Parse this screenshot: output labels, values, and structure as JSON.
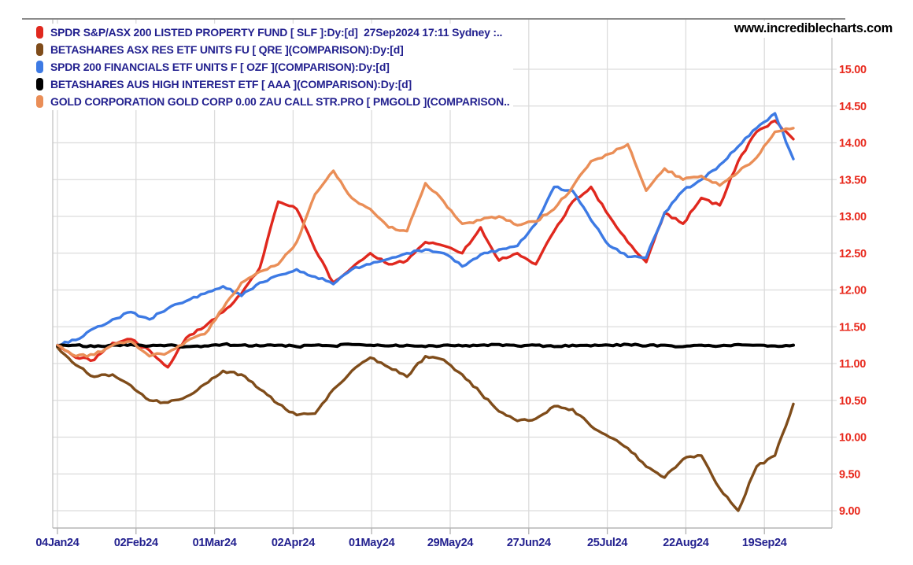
{
  "site": "www.incrediblecharts.com",
  "colors": {
    "legend_text": "#23218f",
    "x_label_text": "#23218f",
    "y_label_text": "#e8291d",
    "grid": "#dcdcdc",
    "plot_border": "#c2c2c2",
    "top_rule": "#8c8c8c",
    "background": "#ffffff"
  },
  "legend": {
    "items": [
      {
        "label": "SPDR S&P/ASX 200 LISTED PROPERTY FUND [ SLF ]:Dy:[d]  27Sep2024 17:11 Sydney :..",
        "ticker": "SLF",
        "color": "#e0281e"
      },
      {
        "label": "BETASHARES ASX RES ETF UNITS FU [ QRE ](COMPARISON):Dy:[d]",
        "ticker": "QRE",
        "color": "#7f4c1a"
      },
      {
        "label": "SPDR 200 FINANCIALS ETF UNITS F [ OZF ](COMPARISON):Dy:[d]",
        "ticker": "OZF",
        "color": "#3d7ae4"
      },
      {
        "label": "BETASHARES AUS HIGH INTEREST ETF [ AAA ](COMPARISON):Dy:[d]",
        "ticker": "AAA",
        "color": "#000000"
      },
      {
        "label": "GOLD CORPORATION GOLD CORP 0.00 ZAU CALL STR.PRO [ PMGOLD ](COMPARISON..",
        "ticker": "PMGOLD",
        "color": "#ea8e57"
      }
    ]
  },
  "chart_data": {
    "type": "line",
    "title": "",
    "xlabel": "",
    "ylabel": "",
    "grid": true,
    "legend_position": "top-left",
    "timeframe": "daily, 04Jan24 to 27Sep2024",
    "ylim": [
      8.77,
      15.68
    ],
    "x_tick_labels": [
      "04Jan24",
      "02Feb24",
      "01Mar24",
      "02Apr24",
      "01May24",
      "29May24",
      "27Jun24",
      "25Jul24",
      "22Aug24",
      "19Sep24"
    ],
    "y_tick_values": [
      15.0,
      14.5,
      14.0,
      13.5,
      13.0,
      12.5,
      12.0,
      11.5,
      11.0,
      10.5,
      10.0,
      9.5,
      9.0
    ],
    "y_tick_labels": [
      "15.00",
      "14.50",
      "14.00",
      "13.50",
      "13.00",
      "12.50",
      "12.00",
      "11.50",
      "11.00",
      "10.50",
      "10.00",
      "9.50",
      "9.00"
    ],
    "series": [
      {
        "name": "SPDR S&P/ASX 200 LISTED PROPERTY FUND",
        "ticker": "SLF",
        "color": "#e0281e",
        "values": [
          11.25,
          11.08,
          11.05,
          11.28,
          11.33,
          11.18,
          10.95,
          11.35,
          11.5,
          11.7,
          11.95,
          12.3,
          13.2,
          13.1,
          12.55,
          12.1,
          12.3,
          12.5,
          12.35,
          12.4,
          12.65,
          12.6,
          12.5,
          12.85,
          12.4,
          12.5,
          12.35,
          12.8,
          13.2,
          13.4,
          13.0,
          12.65,
          12.38,
          13.05,
          12.9,
          13.25,
          13.15,
          13.75,
          14.15,
          14.3,
          14.05
        ]
      },
      {
        "name": "BETASHARES ASX RES ETF UNITS",
        "ticker": "QRE",
        "color": "#7f4c1a",
        "values": [
          11.22,
          10.98,
          10.82,
          10.85,
          10.7,
          10.5,
          10.47,
          10.55,
          10.72,
          10.9,
          10.85,
          10.65,
          10.45,
          10.3,
          10.32,
          10.65,
          10.9,
          11.08,
          10.95,
          10.82,
          11.1,
          11.05,
          10.85,
          10.6,
          10.35,
          10.22,
          10.25,
          10.42,
          10.38,
          10.15,
          10.0,
          9.85,
          9.6,
          9.45,
          9.7,
          9.75,
          9.3,
          9.0,
          9.6,
          9.75,
          10.45
        ]
      },
      {
        "name": "SPDR 200 FINANCIALS ETF UNITS",
        "ticker": "OZF",
        "color": "#3d7ae4",
        "values": [
          11.25,
          11.32,
          11.48,
          11.6,
          11.7,
          11.6,
          11.75,
          11.85,
          11.95,
          12.05,
          11.92,
          12.1,
          12.2,
          12.28,
          12.18,
          12.08,
          12.28,
          12.35,
          12.42,
          12.5,
          12.55,
          12.5,
          12.32,
          12.48,
          12.55,
          12.6,
          12.9,
          13.4,
          13.35,
          12.95,
          12.6,
          12.45,
          12.44,
          13.05,
          13.35,
          13.5,
          13.7,
          13.95,
          14.2,
          14.4,
          13.78
        ]
      },
      {
        "name": "BETASHARES AUS HIGH INTEREST ETF",
        "ticker": "AAA",
        "color": "#000000",
        "values": [
          11.24,
          11.25,
          11.23,
          11.25,
          11.26,
          11.24,
          11.25,
          11.23,
          11.24,
          11.26,
          11.25,
          11.24,
          11.25,
          11.23,
          11.25,
          11.24,
          11.26,
          11.25,
          11.24,
          11.25,
          11.23,
          11.25,
          11.24,
          11.25,
          11.26,
          11.24,
          11.25,
          11.23,
          11.25,
          11.24,
          11.25,
          11.26,
          11.24,
          11.25,
          11.23,
          11.25,
          11.24,
          11.26,
          11.25,
          11.24,
          11.25
        ]
      },
      {
        "name": "GOLD CORPORATION GOLD CORP ZAU CALL STR.PRO",
        "ticker": "PMGOLD",
        "color": "#ea8e57",
        "values": [
          11.25,
          11.1,
          11.12,
          11.25,
          11.3,
          11.1,
          11.15,
          11.3,
          11.4,
          11.75,
          12.1,
          12.25,
          12.35,
          12.65,
          13.3,
          13.62,
          13.25,
          13.1,
          12.85,
          12.8,
          13.45,
          13.2,
          12.9,
          12.95,
          13.0,
          12.88,
          12.93,
          13.1,
          13.4,
          13.75,
          13.85,
          13.98,
          13.35,
          13.65,
          13.5,
          13.55,
          13.42,
          13.6,
          13.8,
          14.15,
          14.2
        ]
      }
    ]
  }
}
